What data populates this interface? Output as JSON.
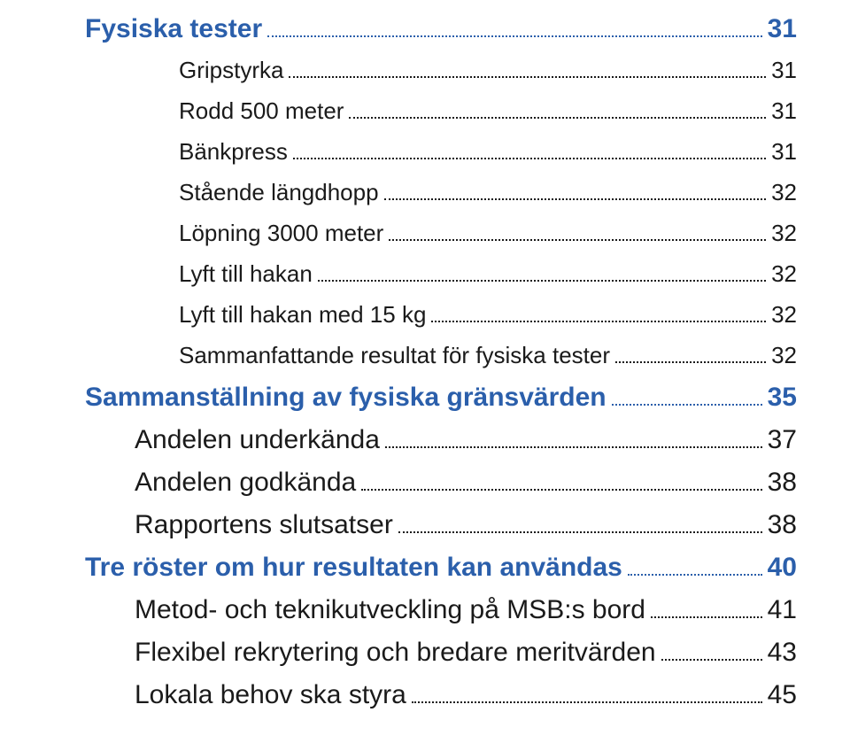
{
  "colors": {
    "blue": "#2b5fab",
    "black": "#1a1a1a",
    "leader_blue": "#2b5fab",
    "leader_black": "#1a1a1a"
  },
  "fontsize": {
    "level1": 30,
    "level2": 30,
    "level3": 26
  },
  "row_margin_bottom": 18,
  "items": [
    {
      "level": 1,
      "label": "Fysiska tester",
      "page": "31"
    },
    {
      "level": 3,
      "label": "Gripstyrka",
      "page": "31"
    },
    {
      "level": 3,
      "label": "Rodd 500 meter",
      "page": "31"
    },
    {
      "level": 3,
      "label": "Bänkpress",
      "page": "31"
    },
    {
      "level": 3,
      "label": "Stående längdhopp",
      "page": "32"
    },
    {
      "level": 3,
      "label": "Löpning 3000 meter",
      "page": "32"
    },
    {
      "level": 3,
      "label": "Lyft till hakan",
      "page": "32"
    },
    {
      "level": 3,
      "label": "Lyft till hakan med 15 kg",
      "page": "32"
    },
    {
      "level": 3,
      "label": "Sammanfattande resultat för fysiska tester",
      "page": "32"
    },
    {
      "level": 1,
      "label": "Sammanställning av fysiska gränsvärden",
      "page": "35"
    },
    {
      "level": 2,
      "label": "Andelen underkända",
      "page": "37"
    },
    {
      "level": 2,
      "label": "Andelen godkända",
      "page": "38"
    },
    {
      "level": 2,
      "label": "Rapportens slutsatser",
      "page": "38"
    },
    {
      "level": 1,
      "label": "Tre röster om hur resultaten kan användas",
      "page": "40"
    },
    {
      "level": 2,
      "label": "Metod- och teknikutveckling på MSB:s bord",
      "page": "41"
    },
    {
      "level": 2,
      "label": "Flexibel rekrytering och bredare meritvärden",
      "page": "43"
    },
    {
      "level": 2,
      "label": "Lokala behov ska styra",
      "page": "45"
    }
  ]
}
